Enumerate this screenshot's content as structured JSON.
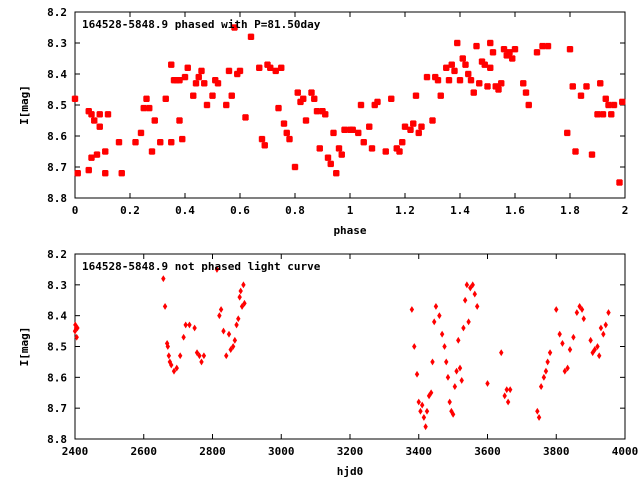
{
  "chart_data": [
    {
      "type": "scatter",
      "title": "164528-5848.9 phased with P=81.50day",
      "xlabel": "phase",
      "ylabel": "I[mag]",
      "xlim": [
        0,
        2
      ],
      "ylim": [
        8.8,
        8.2
      ],
      "y_inverted": true,
      "grid": false,
      "color": "#ff0000",
      "xticks": [
        "0",
        "0.2",
        "0.4",
        "0.6",
        "0.8",
        "1",
        "1.2",
        "1.4",
        "1.6",
        "1.8",
        "2"
      ],
      "yticks": [
        "8.2",
        "8.3",
        "8.4",
        "8.5",
        "8.6",
        "8.7",
        "8.8"
      ],
      "series": [
        {
          "x": [
            0.0,
            0.01,
            0.05,
            0.05,
            0.06,
            0.06,
            0.07,
            0.08,
            0.09,
            0.09,
            0.11,
            0.11,
            0.12,
            0.16,
            0.17,
            0.22,
            0.24,
            0.25,
            0.26,
            0.27,
            0.28,
            0.29,
            0.31,
            0.33,
            0.35,
            0.35,
            0.36,
            0.37,
            0.38,
            0.38,
            0.39,
            0.4,
            0.41,
            0.43,
            0.44,
            0.45,
            0.46,
            0.47,
            0.48,
            0.5,
            0.51,
            0.52,
            0.55,
            0.56,
            0.57,
            0.58,
            0.59,
            0.6,
            0.62,
            0.64,
            0.67,
            0.68,
            0.69,
            0.7,
            0.71,
            0.73,
            0.74,
            0.75,
            0.76,
            0.77,
            0.78,
            0.8,
            0.81,
            0.82,
            0.83,
            0.84,
            0.86,
            0.87,
            0.88,
            0.89,
            0.9,
            0.91,
            0.92,
            0.93,
            0.94,
            0.95,
            0.96,
            0.97,
            0.98,
            1.0,
            1.01,
            1.03,
            1.04,
            1.05,
            1.07,
            1.08,
            1.09,
            1.1,
            1.13,
            1.15,
            1.17,
            1.18,
            1.19,
            1.2,
            1.22,
            1.23,
            1.24,
            1.25,
            1.26,
            1.28,
            1.3,
            1.31,
            1.32,
            1.33,
            1.35,
            1.36,
            1.37,
            1.38,
            1.39,
            1.4,
            1.41,
            1.42,
            1.43,
            1.44,
            1.45,
            1.46,
            1.47,
            1.48,
            1.49,
            1.5,
            1.51,
            1.51,
            1.52,
            1.53,
            1.54,
            1.55,
            1.56,
            1.57,
            1.58,
            1.59,
            1.6,
            1.63,
            1.64,
            1.65,
            1.68,
            1.7,
            1.72,
            1.79,
            1.8,
            1.81,
            1.82,
            1.84,
            1.86,
            1.88,
            1.9,
            1.91,
            1.92,
            1.93,
            1.94,
            1.95,
            1.96,
            1.98,
            1.99
          ],
          "y": [
            8.48,
            8.72,
            8.71,
            8.52,
            8.53,
            8.67,
            8.55,
            8.66,
            8.57,
            8.53,
            8.65,
            8.72,
            8.53,
            8.62,
            8.72,
            8.62,
            8.59,
            8.51,
            8.48,
            8.51,
            8.65,
            8.55,
            8.62,
            8.48,
            8.62,
            8.37,
            8.42,
            8.42,
            8.55,
            8.42,
            8.61,
            8.41,
            8.38,
            8.47,
            8.43,
            8.41,
            8.39,
            8.43,
            8.5,
            8.47,
            8.42,
            8.43,
            8.5,
            8.39,
            8.47,
            8.25,
            8.4,
            8.39,
            8.54,
            8.28,
            8.38,
            8.61,
            8.63,
            8.37,
            8.38,
            8.39,
            8.51,
            8.38,
            8.56,
            8.59,
            8.61,
            8.7,
            8.46,
            8.49,
            8.48,
            8.55,
            8.46,
            8.48,
            8.52,
            8.64,
            8.52,
            8.53,
            8.67,
            8.69,
            8.59,
            8.72,
            8.64,
            8.66,
            8.58,
            8.58,
            8.58,
            8.59,
            8.5,
            8.62,
            8.57,
            8.64,
            8.5,
            8.49,
            8.65,
            8.48,
            8.64,
            8.65,
            8.62,
            8.57,
            8.58,
            8.56,
            8.47,
            8.59,
            8.57,
            8.41,
            8.55,
            8.41,
            8.42,
            8.47,
            8.38,
            8.42,
            8.37,
            8.39,
            8.3,
            8.42,
            8.35,
            8.37,
            8.4,
            8.42,
            8.46,
            8.31,
            8.43,
            8.36,
            8.37,
            8.44,
            8.38,
            8.3,
            8.33,
            8.44,
            8.45,
            8.43,
            8.32,
            8.34,
            8.33,
            8.35,
            8.32,
            8.43,
            8.46,
            8.5,
            8.33,
            8.31,
            8.31,
            8.59,
            8.32,
            8.44,
            8.65,
            8.47,
            8.44,
            8.66,
            8.53,
            8.43,
            8.53,
            8.48,
            8.5,
            8.53,
            8.5,
            8.75,
            8.49
          ],
          "marker": "star"
        }
      ]
    },
    {
      "type": "scatter",
      "title": "164528-5848.9 not phased light curve",
      "xlabel": "hjd0",
      "ylabel": "I[mag]",
      "xlim": [
        2400,
        4000
      ],
      "ylim": [
        8.8,
        8.2
      ],
      "y_inverted": true,
      "grid": false,
      "color": "#ff0000",
      "xticks": [
        "2400",
        "2600",
        "2800",
        "3000",
        "3200",
        "3400",
        "3600",
        "3800",
        "4000"
      ],
      "yticks": [
        "8.2",
        "8.3",
        "8.4",
        "8.5",
        "8.6",
        "8.7",
        "8.8"
      ],
      "series": [
        {
          "x": [
            2400,
            2401,
            2403,
            2405,
            2407,
            2657,
            2662,
            2668,
            2670,
            2673,
            2676,
            2680,
            2688,
            2696,
            2706,
            2716,
            2722,
            2733,
            2748,
            2755,
            2762,
            2768,
            2775,
            2813,
            2820,
            2825,
            2832,
            2840,
            2848,
            2853,
            2860,
            2865,
            2870,
            2875,
            2879,
            2882,
            2886,
            2890,
            2893,
            3380,
            3387,
            3395,
            3400,
            3405,
            3410,
            3415,
            3420,
            3424,
            3430,
            3436,
            3440,
            3445,
            3450,
            3460,
            3468,
            3475,
            3480,
            3485,
            3490,
            3495,
            3500,
            3505,
            3510,
            3515,
            3520,
            3525,
            3530,
            3535,
            3540,
            3545,
            3550,
            3557,
            3563,
            3570,
            3600,
            3640,
            3650,
            3656,
            3660,
            3666,
            3745,
            3750,
            3756,
            3764,
            3770,
            3775,
            3782,
            3800,
            3810,
            3818,
            3825,
            3833,
            3840,
            3850,
            3860,
            3868,
            3875,
            3880,
            3900,
            3906,
            3912,
            3920,
            3925,
            3930,
            3937,
            3944,
            3952
          ],
          "y": [
            8.45,
            8.43,
            8.44,
            8.47,
            8.44,
            8.28,
            8.37,
            8.49,
            8.5,
            8.53,
            8.55,
            8.56,
            8.58,
            8.57,
            8.53,
            8.47,
            8.43,
            8.43,
            8.44,
            8.52,
            8.53,
            8.55,
            8.53,
            8.25,
            8.4,
            8.38,
            8.45,
            8.53,
            8.46,
            8.51,
            8.5,
            8.48,
            8.43,
            8.41,
            8.34,
            8.32,
            8.37,
            8.3,
            8.36,
            8.38,
            8.5,
            8.59,
            8.68,
            8.71,
            8.69,
            8.73,
            8.76,
            8.71,
            8.66,
            8.65,
            8.55,
            8.42,
            8.37,
            8.4,
            8.46,
            8.5,
            8.55,
            8.6,
            8.68,
            8.71,
            8.72,
            8.63,
            8.58,
            8.48,
            8.57,
            8.61,
            8.44,
            8.35,
            8.3,
            8.42,
            8.31,
            8.3,
            8.33,
            8.37,
            8.62,
            8.52,
            8.66,
            8.64,
            8.68,
            8.64,
            8.71,
            8.73,
            8.63,
            8.6,
            8.58,
            8.55,
            8.52,
            8.38,
            8.46,
            8.49,
            8.58,
            8.57,
            8.51,
            8.47,
            8.39,
            8.37,
            8.38,
            8.41,
            8.48,
            8.52,
            8.51,
            8.5,
            8.53,
            8.44,
            8.46,
            8.43,
            8.39
          ],
          "marker": "diamond"
        }
      ]
    }
  ]
}
